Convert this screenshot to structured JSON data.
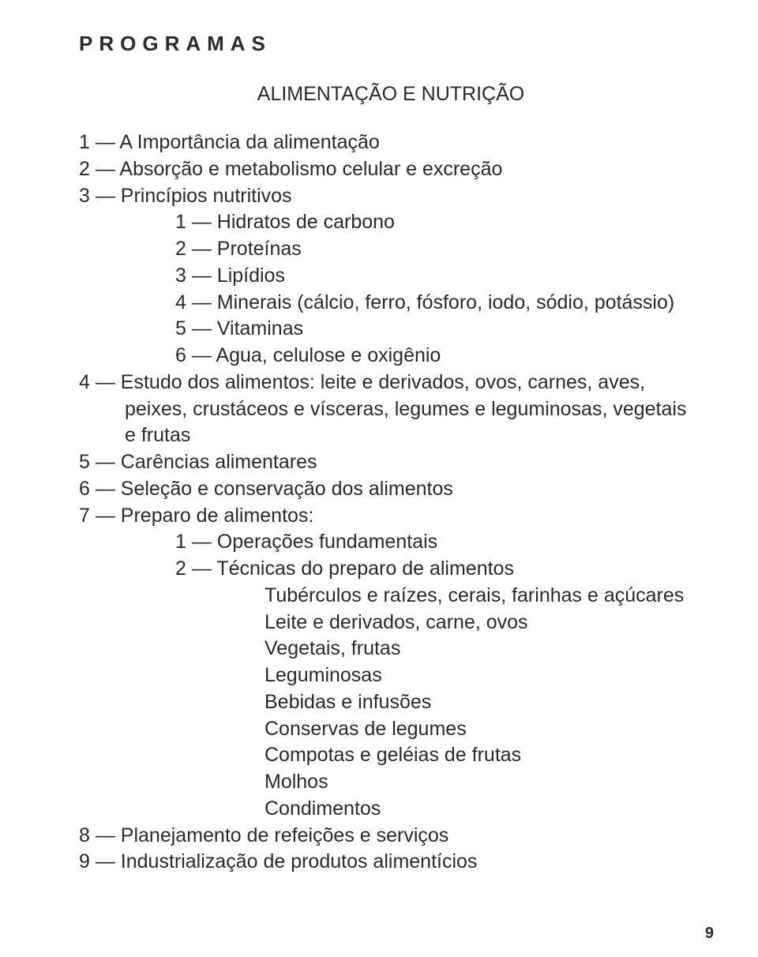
{
  "pageNumber": "9",
  "header": "PROGRAMAS",
  "sectionTitle": "ALIMENTAÇÃO E NUTRIÇÃO",
  "items": {
    "i1": "1 — A Importância da alimentação",
    "i2": "2 — Absorção e metabolismo celular e excreção",
    "i3": "3 — Princípios nutritivos",
    "i3_1": "1 — Hidratos de carbono",
    "i3_2": "2 — Proteínas",
    "i3_3": "3 — Lipídios",
    "i3_4": "4 — Minerais (cálcio, ferro, fósforo, iodo, sódio, potássio)",
    "i3_5": "5 — Vitaminas",
    "i3_6": "6 — Agua, celulose e oxigênio",
    "i4": "4 — Estudo dos alimentos: leite e derivados, ovos, carnes, aves, peixes, crustáceos e vísceras, legumes e leguminosas, vegetais e frutas",
    "i5": "5 — Carências alimentares",
    "i6": "6 — Seleção e conservação dos alimentos",
    "i7": "7 — Preparo de alimentos:",
    "i7_1": "1 — Operações fundamentais",
    "i7_2": "2 — Técnicas do preparo de alimentos",
    "i7_2a": "Tubérculos e raízes, cerais, farinhas e açúcares",
    "i7_2b": "Leite e derivados, carne, ovos",
    "i7_2c": "Vegetais, frutas",
    "i7_2d": "Leguminosas",
    "i7_2e": "Bebidas e infusões",
    "i7_2f": "Conservas de legumes",
    "i7_2g": "Compotas e geléias de frutas",
    "i7_2h": "Molhos",
    "i7_2i": "Condimentos",
    "i8": "8 — Planejamento de refeições e serviços",
    "i9": "9 — Industrialização de produtos alimentícios"
  },
  "colors": {
    "background": "#ffffff",
    "text": "#2a2a2a"
  },
  "typography": {
    "bodyFontSizePt": 19,
    "headerFontSizePt": 20,
    "headerLetterSpacingPx": 8,
    "fontFamily": "Arial"
  }
}
